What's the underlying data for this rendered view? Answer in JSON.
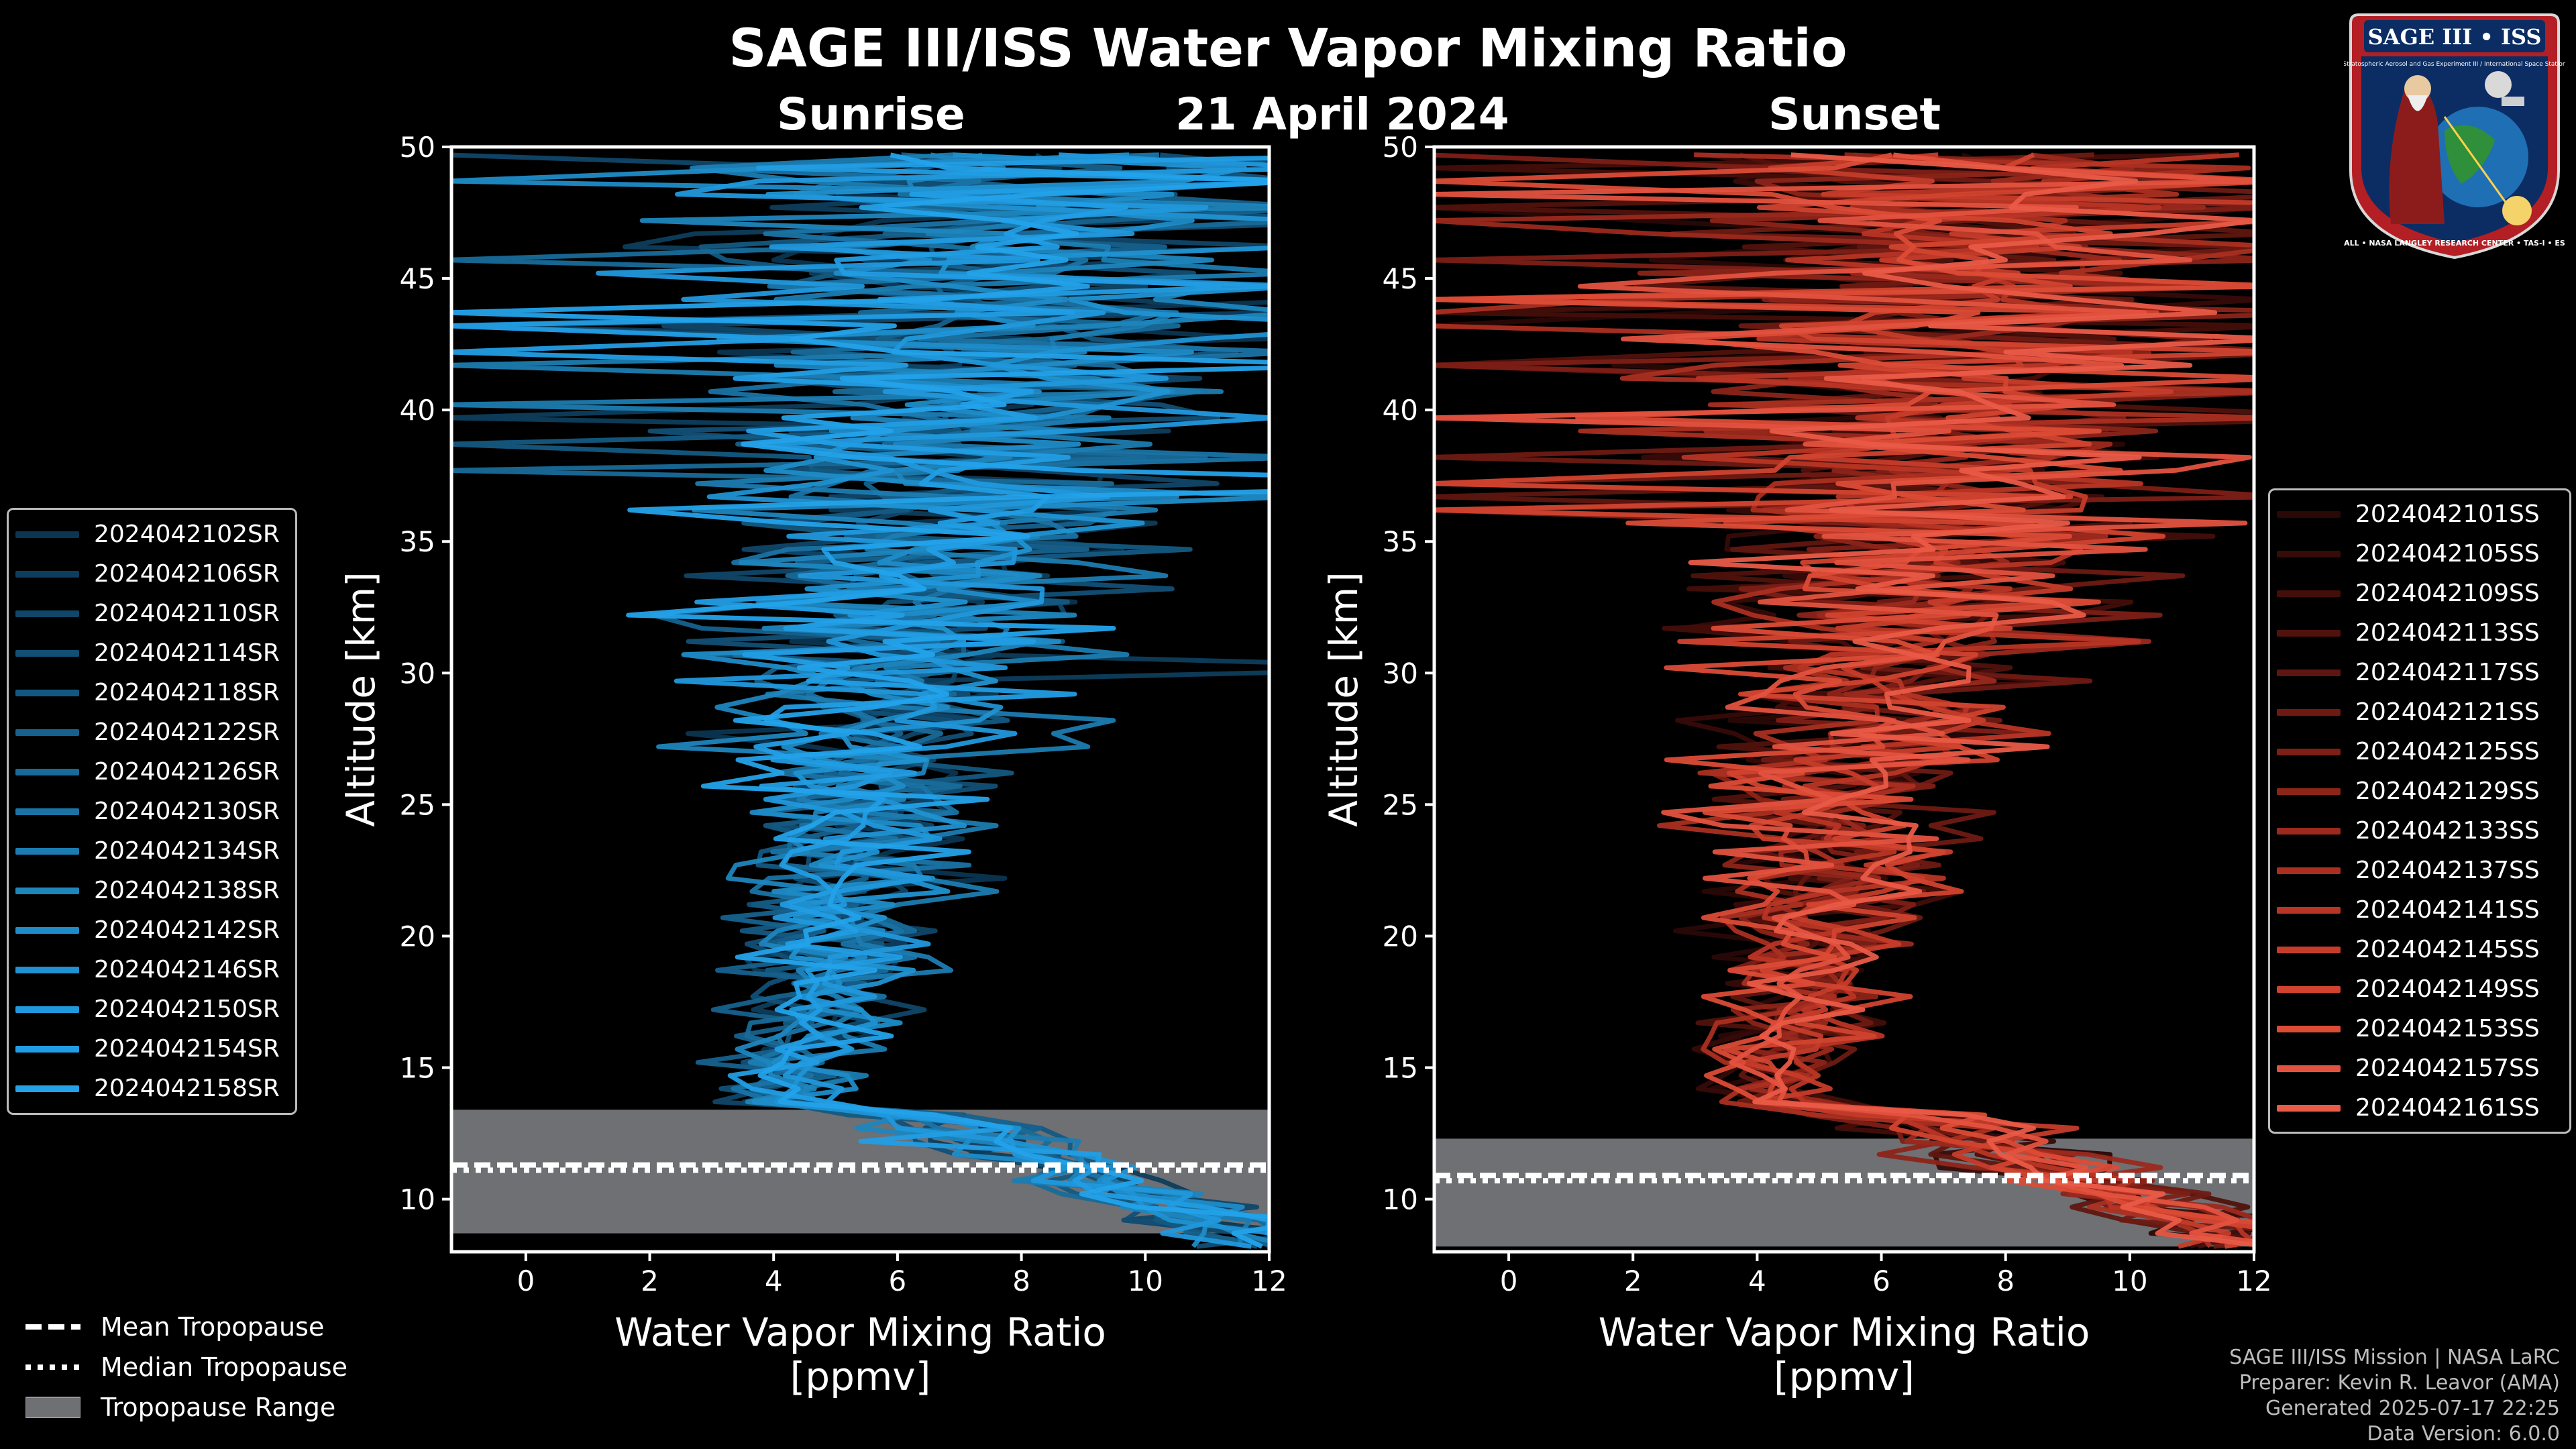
{
  "title": "SAGE III/ISS Water Vapor Mixing Ratio",
  "date": "21 April 2024",
  "logo": {
    "top_text": "SAGE III • ISS",
    "ring_text": "BALL • NASA LANGLEY RESEARCH CENTER • TAS-I • ESA",
    "small_text": "Stratospheric Aerosol and Gas Experiment III / International Space Station"
  },
  "colors": {
    "sunrise": "#1a8fd6",
    "sunset": "#e8584a",
    "tropopause_range": "#6e7074",
    "background": "#000000"
  },
  "chart_data": [
    {
      "type": "line",
      "panel": "Sunrise",
      "title": "Sunrise",
      "xlabel": "Water Vapor Mixing Ratio\n[ppmv]",
      "ylabel": "Altitude [km]",
      "xlim": [
        -1.2,
        12
      ],
      "ylim": [
        8,
        50
      ],
      "xticks": [
        0,
        2,
        4,
        6,
        8,
        10,
        12
      ],
      "yticks": [
        10,
        15,
        20,
        25,
        30,
        35,
        40,
        45,
        50
      ],
      "legend_location": "left",
      "series": [
        "2024042102SR",
        "2024042106SR",
        "2024042110SR",
        "2024042114SR",
        "2024042118SR",
        "2024042122SR",
        "2024042126SR",
        "2024042130SR",
        "2024042134SR",
        "2024042138SR",
        "2024042142SR",
        "2024042146SR",
        "2024042150SR",
        "2024042154SR",
        "2024042158SR"
      ],
      "series_colors": [
        "#0b3550",
        "#0d3d5c",
        "#104668",
        "#124f75",
        "#145881",
        "#16618d",
        "#186a99",
        "#1a73a5",
        "#1c7cb1",
        "#1e85bd",
        "#1f8cc8",
        "#2092d2",
        "#2198dc",
        "#229de4",
        "#23a2ea"
      ],
      "tropopause": {
        "mean": 11.3,
        "median": 11.1,
        "range": [
          8.7,
          13.4
        ]
      }
    },
    {
      "type": "line",
      "panel": "Sunset",
      "title": "Sunset",
      "xlabel": "Water Vapor Mixing Ratio\n[ppmv]",
      "ylabel": "Altitude [km]",
      "xlim": [
        -1.2,
        12
      ],
      "ylim": [
        8,
        50
      ],
      "xticks": [
        0,
        2,
        4,
        6,
        8,
        10,
        12
      ],
      "yticks": [
        10,
        15,
        20,
        25,
        30,
        35,
        40,
        45,
        50
      ],
      "legend_location": "right",
      "series": [
        "2024042101SS",
        "2024042105SS",
        "2024042109SS",
        "2024042113SS",
        "2024042117SS",
        "2024042121SS",
        "2024042125SS",
        "2024042129SS",
        "2024042133SS",
        "2024042137SS",
        "2024042141SS",
        "2024042145SS",
        "2024042149SS",
        "2024042153SS",
        "2024042157SS",
        "2024042161SS"
      ],
      "series_colors": [
        "#2a0806",
        "#360b08",
        "#430e0a",
        "#51120d",
        "#5f1610",
        "#6e1a13",
        "#7d1f16",
        "#8c2419",
        "#9b291d",
        "#aa2f21",
        "#b83525",
        "#c53c2a",
        "#d1432f",
        "#db4b36",
        "#e3523f",
        "#e95a47"
      ],
      "tropopause": {
        "mean": 10.9,
        "median": 10.7,
        "range": [
          8.2,
          12.3
        ]
      }
    }
  ],
  "legend_common": [
    {
      "label": "Mean Tropopause",
      "style": "dashed"
    },
    {
      "label": "Median Tropopause",
      "style": "dotted"
    },
    {
      "label": "Tropopause Range",
      "style": "patch"
    }
  ],
  "footer": {
    "mission": "SAGE III/ISS Mission | NASA LaRC",
    "preparer": "Preparer: Kevin R. Leavor (AMA)",
    "generated": "Generated 2025-07-17 22:25",
    "version": "Data Version: 6.0.0"
  }
}
